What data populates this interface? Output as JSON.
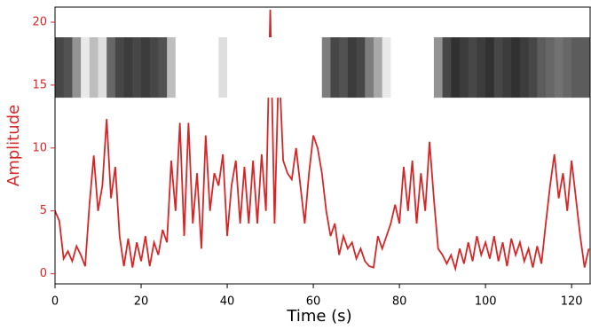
{
  "chart_data": {
    "type": "line",
    "xlabel": "Time (s)",
    "ylabel": "Amplitude",
    "xlim": [
      0,
      124.3
    ],
    "ylim": [
      -0.8,
      21.2
    ],
    "xticks": [
      0,
      20,
      40,
      60,
      80,
      100,
      120
    ],
    "yticks": [
      0,
      5,
      10,
      15,
      20
    ],
    "tick_color": "#d62728",
    "series": [
      {
        "color": "#d62728",
        "x": [
          0,
          1,
          2,
          3,
          4,
          5,
          6,
          7,
          8,
          9,
          10,
          11,
          12,
          13,
          14,
          15,
          16,
          17,
          18,
          19,
          20,
          21,
          22,
          23,
          24,
          25,
          26,
          27,
          28,
          29,
          30,
          31,
          32,
          33,
          34,
          35,
          36,
          37,
          38,
          39,
          40,
          41,
          42,
          43,
          44,
          45,
          46,
          47,
          48,
          49,
          50,
          51,
          52,
          53,
          54,
          55,
          56,
          57,
          58,
          59,
          60,
          61,
          62,
          63,
          64,
          65,
          66,
          67,
          68,
          69,
          70,
          71,
          72,
          73,
          74,
          75,
          76,
          77,
          78,
          79,
          80,
          81,
          82,
          83,
          84,
          85,
          86,
          87,
          88,
          89,
          90,
          91,
          92,
          93,
          94,
          95,
          96,
          97,
          98,
          99,
          100,
          101,
          102,
          103,
          104,
          105,
          106,
          107,
          108,
          109,
          110,
          111,
          112,
          113,
          114,
          115,
          116,
          117,
          118,
          119,
          120,
          121,
          122,
          123,
          124
        ],
        "values": [
          5,
          4.2,
          1.2,
          1.8,
          1.0,
          2.2,
          1.5,
          0.6,
          5.5,
          9.4,
          5,
          7,
          12.3,
          6,
          8.5,
          3,
          0.6,
          2.8,
          0.5,
          2.5,
          1,
          3,
          0.6,
          2.5,
          1.5,
          3.5,
          2.5,
          9,
          5,
          12,
          3,
          12,
          4,
          8,
          2,
          11,
          5,
          8,
          7,
          9.5,
          3,
          7,
          9,
          4,
          8.5,
          4,
          9,
          4,
          9.5,
          5,
          21,
          4,
          17,
          9,
          8,
          7.5,
          10,
          7,
          4,
          8,
          11,
          10,
          8,
          5,
          3,
          4,
          1.5,
          3,
          2,
          2.5,
          1.2,
          2,
          1,
          0.6,
          0.5,
          3,
          2,
          3,
          4,
          5.5,
          4,
          8.5,
          5,
          9,
          4,
          8,
          5,
          10.5,
          6,
          2,
          1.5,
          0.8,
          1.5,
          0.4,
          2,
          0.8,
          2.5,
          1,
          3,
          1.5,
          2.5,
          1.2,
          3,
          1,
          2.5,
          0.6,
          2.8,
          1.5,
          2.5,
          1,
          2,
          0.5,
          2.2,
          0.8,
          4,
          7,
          9.5,
          6,
          8,
          5,
          9,
          6,
          3,
          0.5,
          2
        ]
      }
    ],
    "band": {
      "ylim": [
        14,
        18.8
      ],
      "step": 2,
      "x": [
        0,
        2,
        4,
        6,
        8,
        10,
        12,
        14,
        16,
        18,
        20,
        22,
        24,
        26,
        28,
        30,
        32,
        34,
        36,
        38,
        40,
        42,
        44,
        46,
        48,
        50,
        52,
        54,
        56,
        58,
        60,
        62,
        64,
        66,
        68,
        70,
        72,
        74,
        76,
        78,
        80,
        82,
        84,
        86,
        88,
        90,
        92,
        94,
        96,
        98,
        100,
        102,
        104,
        106,
        108,
        110,
        112,
        114,
        116,
        118,
        120,
        122,
        124
      ],
      "values": [
        0.85,
        0.8,
        0.5,
        0.1,
        0.3,
        0.15,
        0.7,
        0.85,
        0.9,
        0.85,
        0.9,
        0.85,
        0.8,
        0.3,
        0,
        0,
        0,
        0,
        0,
        0.15,
        0,
        0,
        0,
        0,
        0,
        0,
        0,
        0,
        0,
        0,
        0,
        0.6,
        0.85,
        0.8,
        0.9,
        0.85,
        0.6,
        0.4,
        0.1,
        0,
        0,
        0,
        0,
        0,
        0.5,
        0.85,
        0.95,
        0.9,
        0.85,
        0.9,
        0.95,
        0.85,
        0.9,
        0.95,
        0.9,
        0.85,
        0.75,
        0.7,
        0.65,
        0.7,
        0.75,
        0.75,
        0.75
      ]
    }
  }
}
